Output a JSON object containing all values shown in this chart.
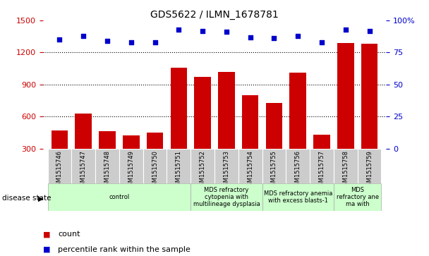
{
  "title": "GDS5622 / ILMN_1678781",
  "samples": [
    "GSM1515746",
    "GSM1515747",
    "GSM1515748",
    "GSM1515749",
    "GSM1515750",
    "GSM1515751",
    "GSM1515752",
    "GSM1515753",
    "GSM1515754",
    "GSM1515755",
    "GSM1515756",
    "GSM1515757",
    "GSM1515758",
    "GSM1515759"
  ],
  "counts": [
    470,
    630,
    460,
    420,
    450,
    1060,
    970,
    1020,
    800,
    730,
    1010,
    430,
    1290,
    1280
  ],
  "percentile_ranks": [
    85,
    88,
    84,
    83,
    83,
    93,
    92,
    91,
    87,
    86,
    88,
    83,
    93,
    92
  ],
  "ylim_left": [
    300,
    1500
  ],
  "ylim_right": [
    0,
    100
  ],
  "yticks_left": [
    300,
    600,
    900,
    1200,
    1500
  ],
  "yticks_right": [
    0,
    25,
    50,
    75,
    100
  ],
  "bar_color": "#cc0000",
  "dot_color": "#0000cc",
  "background_color": "#ffffff",
  "tick_label_color_left": "#cc0000",
  "tick_label_color_right": "#0000cc",
  "grid_color": "#000000",
  "group_defs": [
    {
      "start": 0,
      "end": 6,
      "label": "control"
    },
    {
      "start": 6,
      "end": 9,
      "label": "MDS refractory\ncytopenia with\nmultilineage dysplasia"
    },
    {
      "start": 9,
      "end": 12,
      "label": "MDS refractory anemia\nwith excess blasts-1"
    },
    {
      "start": 12,
      "end": 14,
      "label": "MDS\nrefractory ane\nma with"
    }
  ],
  "legend_count_label": "count",
  "legend_pct_label": "percentile rank within the sample",
  "disease_state_label": "disease state"
}
